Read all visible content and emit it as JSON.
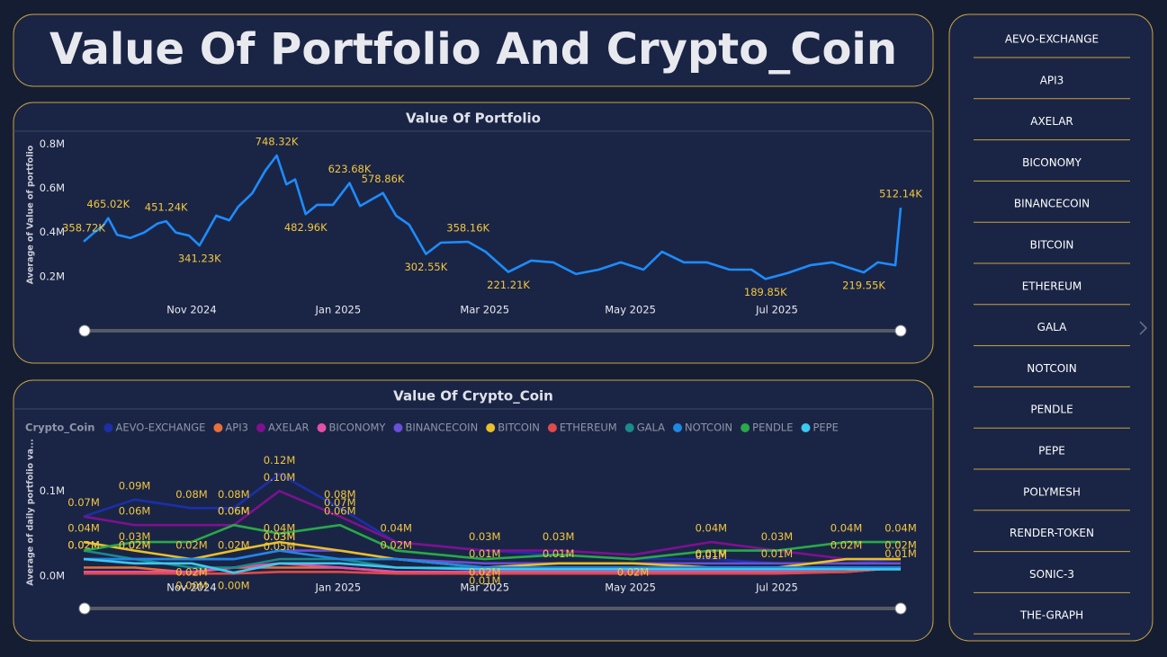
{
  "header": {
    "title": "Value Of Portfolio And Crypto_Coin"
  },
  "chart_data": [
    {
      "type": "line",
      "title": "Value Of Portfolio",
      "y_axis_label": "Average of Value of portfolio",
      "x": [
        2024.71,
        2024.722,
        2024.732,
        2024.738,
        2024.748,
        2024.763,
        2024.779,
        2024.794,
        2024.804,
        2024.815,
        2024.83,
        2024.842,
        2024.861,
        2024.876,
        2024.886,
        2024.902,
        2024.917,
        2024.93,
        2024.941,
        2024.951,
        2024.963,
        2024.976,
        2024.994,
        2025.013,
        2025.025,
        2025.051,
        2025.066,
        2025.081,
        2025.1,
        2025.117,
        2025.148,
        2025.168,
        2025.194,
        2025.22,
        2025.245,
        2025.271,
        2025.297,
        2025.322,
        2025.348,
        2025.369,
        2025.394,
        2025.42,
        2025.446,
        2025.471,
        2025.487,
        2025.512,
        2025.538,
        2025.563,
        2025.599,
        2025.615,
        2025.635,
        2025.641
      ],
      "xlim": [
        2024.71,
        2025.641
      ],
      "xticks": [
        {
          "value": 2024.833,
          "label": "Nov 2024"
        },
        {
          "value": 2025.0,
          "label": "Jan 2025"
        },
        {
          "value": 2025.167,
          "label": "Mar 2025"
        },
        {
          "value": 2025.333,
          "label": "May 2025"
        },
        {
          "value": 2025.5,
          "label": "Jul 2025"
        }
      ],
      "ylim": [
        110000,
        850000
      ],
      "yticks": [
        {
          "value": 200000,
          "label": "0.2M"
        },
        {
          "value": 400000,
          "label": "0.4M"
        },
        {
          "value": 600000,
          "label": "0.6M"
        },
        {
          "value": 800000,
          "label": "0.8M"
        }
      ],
      "series": [
        {
          "color": "#1e8cff",
          "values": [
            358720,
            400000,
            430000,
            465020,
            390000,
            375000,
            400000,
            440000,
            451240,
            400000,
            386000,
            341230,
            476000,
            455000,
            516000,
            577000,
            680000,
            748320,
            618000,
            640000,
            482960,
            525000,
            525000,
            623680,
            520000,
            578860,
            476000,
            435000,
            302550,
            354000,
            358160,
            313000,
            221210,
            273000,
            265000,
            212000,
            232000,
            265000,
            232000,
            313000,
            265000,
            265000,
            232000,
            232000,
            189850,
            216000,
            252000,
            265000,
            219550,
            265000,
            252000,
            512140
          ],
          "value_labels": [
            "358.72K",
            null,
            null,
            "465.02K",
            null,
            null,
            null,
            null,
            "451.24K",
            null,
            null,
            "341.23K",
            null,
            null,
            null,
            null,
            null,
            "748.32K",
            null,
            null,
            "482.96K",
            null,
            null,
            "623.68K",
            null,
            "578.86K",
            null,
            null,
            "302.55K",
            null,
            "358.16K",
            null,
            "221.21K",
            null,
            null,
            null,
            null,
            null,
            null,
            null,
            null,
            null,
            null,
            null,
            "189.85K",
            null,
            null,
            null,
            "219.55K",
            null,
            null,
            "512.14K"
          ]
        }
      ]
    },
    {
      "type": "line",
      "title": "Value Of Crypto_Coin",
      "y_axis_label": "Average of daily portfolio va...",
      "legend_title": "Crypto_Coin",
      "x": [
        2024.71,
        2024.768,
        2024.833,
        2024.881,
        2024.933,
        2025.002,
        2025.066,
        2025.167,
        2025.251,
        2025.336,
        2025.425,
        2025.5,
        2025.579,
        2025.641
      ],
      "xlim": [
        2024.71,
        2025.641
      ],
      "xticks": [
        {
          "value": 2024.833,
          "label": "Nov 2024"
        },
        {
          "value": 2025.0,
          "label": "Jan 2025"
        },
        {
          "value": 2025.167,
          "label": "Mar 2025"
        },
        {
          "value": 2025.333,
          "label": "May 2025"
        },
        {
          "value": 2025.5,
          "label": "Jul 2025"
        }
      ],
      "ylim": [
        0,
        150000
      ],
      "yticks": [
        {
          "value": 0,
          "label": "0.0M"
        },
        {
          "value": 100000,
          "label": "0.1M"
        }
      ],
      "series": [
        {
          "name": "AEVO-EXCHANGE",
          "color": "#1c2fa8",
          "values": [
            70000,
            90000,
            80000,
            80000,
            120000,
            80000,
            40000,
            30000,
            25000,
            20000,
            20000,
            15000,
            15000,
            20000
          ],
          "value_labels": [
            null,
            "0.09M",
            "0.08M",
            "0.08M",
            "0.12M",
            "0.08M",
            null,
            null,
            null,
            null,
            null,
            null,
            null,
            "0.02M"
          ]
        },
        {
          "name": "API3",
          "color": "#e8703a",
          "values": [
            10000,
            10000,
            4000,
            10000,
            10000,
            10000,
            5000,
            5000,
            5000,
            5000,
            5000,
            5000,
            5000,
            10000
          ],
          "value_labels": [
            null,
            null,
            "0.00M",
            null,
            null,
            null,
            null,
            null,
            null,
            null,
            null,
            null,
            null,
            null
          ]
        },
        {
          "name": "AXELAR",
          "color": "#7d1190",
          "values": [
            70000,
            60000,
            60000,
            60000,
            100000,
            70000,
            40000,
            30000,
            30000,
            25000,
            40000,
            30000,
            20000,
            20000
          ],
          "value_labels": [
            "0.07M",
            "0.06M",
            null,
            "0.06M",
            "0.10M",
            "0.07M",
            "0.04M",
            "0.03M",
            "0.03M",
            null,
            "0.04M",
            "0.03M",
            null,
            null
          ]
        },
        {
          "name": "BICONOMY",
          "color": "#e64fa8",
          "values": [
            5000,
            5000,
            5000,
            10000,
            15000,
            10000,
            5000,
            5000,
            5000,
            5000,
            5000,
            5000,
            5000,
            10000
          ],
          "value_labels": [
            null,
            null,
            null,
            null,
            null,
            null,
            null,
            null,
            null,
            null,
            null,
            null,
            null,
            null
          ]
        },
        {
          "name": "BINANCECOIN",
          "color": "#6a4fd8",
          "values": [
            20000,
            20000,
            20000,
            20000,
            30000,
            30000,
            20000,
            15000,
            15000,
            15000,
            15000,
            15000,
            15000,
            15000
          ],
          "value_labels": [
            null,
            null,
            null,
            null,
            "0.03M",
            null,
            null,
            null,
            null,
            null,
            null,
            null,
            null,
            null
          ]
        },
        {
          "name": "BITCOIN",
          "color": "#e8c02a",
          "values": [
            40000,
            30000,
            20000,
            30000,
            40000,
            30000,
            20000,
            10000,
            15000,
            15000,
            10000,
            10000,
            20000,
            20000
          ],
          "value_labels": [
            "0.04M",
            "0.03M",
            "0.02M",
            null,
            "0.04M",
            null,
            "0.02M",
            "0.01M",
            null,
            null,
            "0.01M",
            "0.01M",
            "0.02M",
            null
          ]
        },
        {
          "name": "ETHEREUM",
          "color": "#e04a4a",
          "values": [
            3000,
            3000,
            3000,
            3000,
            5000,
            5000,
            3000,
            3000,
            3000,
            3000,
            3000,
            3000,
            5000,
            10000
          ],
          "value_labels": [
            null,
            null,
            null,
            null,
            null,
            null,
            null,
            null,
            null,
            null,
            null,
            null,
            null,
            null
          ]
        },
        {
          "name": "GALA",
          "color": "#1b8a8a",
          "values": [
            30000,
            20000,
            10000,
            10000,
            20000,
            20000,
            10000,
            10000,
            10000,
            10000,
            10000,
            10000,
            10000,
            10000
          ],
          "value_labels": [
            null,
            "0.02M",
            null,
            null,
            null,
            null,
            null,
            "0.01M",
            null,
            null,
            null,
            null,
            null,
            null
          ]
        },
        {
          "name": "NOTCOIN",
          "color": "#1e88e5",
          "values": [
            20000,
            20000,
            20000,
            20000,
            30000,
            20000,
            20000,
            10000,
            10000,
            10000,
            10000,
            10000,
            10000,
            10000
          ],
          "value_labels": [
            "0.02M",
            "0.02M",
            "0.02M",
            "0.02M",
            "0.03M",
            null,
            null,
            null,
            "0.01M",
            null,
            "0.01M",
            null,
            null,
            "0.01M"
          ]
        },
        {
          "name": "PENDLE",
          "color": "#2aa84a",
          "values": [
            30000,
            40000,
            40000,
            60000,
            50000,
            60000,
            30000,
            20000,
            25000,
            20000,
            30000,
            30000,
            40000,
            40000
          ],
          "value_labels": [
            null,
            null,
            null,
            "0.06M",
            "0.05M",
            "0.06M",
            null,
            "0.02M",
            null,
            "0.02M",
            null,
            null,
            "0.04M",
            "0.04M"
          ]
        },
        {
          "name": "PEPE",
          "color": "#3ec8f0",
          "values": [
            20000,
            15000,
            15000,
            4000,
            15000,
            15000,
            10000,
            8000,
            8000,
            8000,
            8000,
            8000,
            8000,
            8000
          ],
          "value_labels": [
            "0.02M",
            null,
            null,
            "0.00M",
            null,
            null,
            null,
            null,
            null,
            null,
            "0.01M",
            null,
            null,
            null
          ]
        }
      ]
    }
  ],
  "slicer": {
    "items": [
      "AEVO-EXCHANGE",
      "API3",
      "AXELAR",
      "BICONOMY",
      "BINANCECOIN",
      "BITCOIN",
      "ETHEREUM",
      "GALA",
      "NOTCOIN",
      "PENDLE",
      "PEPE",
      "POLYMESH",
      "RENDER-TOKEN",
      "SONIC-3",
      "THE-GRAPH"
    ]
  }
}
